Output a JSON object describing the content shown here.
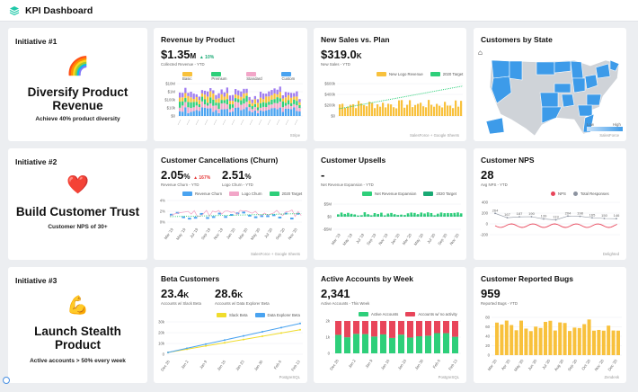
{
  "app": {
    "title": "KPI Dashboard"
  },
  "colors": {
    "teal": "#1fc8a9",
    "blue": "#4aa3f0",
    "yellow": "#f8c13c",
    "green": "#2ecf7a",
    "red": "#e8455a",
    "pink": "#f2a6c8",
    "gray": "#8c93a0"
  },
  "initiatives": [
    {
      "label": "Initiative #1",
      "icon": "rainbow-icon",
      "emoji": "🌈",
      "name": "Diversify Product Revenue",
      "subtitle": "Achieve 40% product diversity"
    },
    {
      "label": "Initiative #2",
      "icon": "heart-icon",
      "emoji": "❤️",
      "name": "Build Customer Trust",
      "subtitle": "Customer NPS of 30+"
    },
    {
      "label": "Initiative #3",
      "icon": "flexed-bicep-icon",
      "emoji": "💪",
      "name": "Launch Stealth Product",
      "subtitle": "Active accounts > 50% every week"
    }
  ],
  "revenue": {
    "title": "Revenue by Product",
    "value_main": "$1.35",
    "value_unit": "M",
    "delta": "▲ 10%",
    "sub": "Collected Revenue - YTD",
    "legend": [
      "Basic",
      "Premium",
      "Standard",
      "Custom"
    ],
    "footer": "Stripe",
    "yticks": [
      "$10M",
      "$1M",
      "$100k",
      "$10k",
      "$0"
    ]
  },
  "newsales": {
    "title": "New Sales vs. Plan",
    "value_main": "$319.0",
    "value_unit": "K",
    "sub": "New Sales - YTD",
    "legend": [
      "New Logo Revenue",
      "2020 Target"
    ],
    "footer": "SalesForce + Google Sheets",
    "yticks": [
      "$600k",
      "$400k",
      "$200k",
      "$0"
    ]
  },
  "states": {
    "title": "Customers by State",
    "legend_low": "Low",
    "legend_high": "High",
    "footer": "SalesForce"
  },
  "churn": {
    "title": "Customer Cancellations (Churn)",
    "v1": "2.05",
    "v1_unit": "%",
    "v1_delta": "▲ 167%",
    "v1_sub": "Revenue Churn - YTD",
    "v2": "2.51",
    "v2_unit": "%",
    "v2_sub": "Logo Churn - YTD",
    "legend": [
      "Revenue Churn",
      "Logo Churn",
      "2020 Target"
    ],
    "footer": "SalesForce + Google Sheets",
    "yticks": [
      "4%",
      "2%",
      "0%"
    ],
    "xticks": [
      "Mar '19",
      "May '19",
      "Jul '19",
      "Sep '19",
      "Nov '19",
      "Jan '20",
      "Mar '20",
      "May '20",
      "Jul '20",
      "Sep '20",
      "Nov '20"
    ]
  },
  "upsells": {
    "title": "Customer Upsells",
    "value": "-",
    "sub": "Net Revenue Expansion - YTD",
    "legend": [
      "Net Revenue Expansion",
      "2020 Target"
    ],
    "yticks": [
      "$5M",
      "$0",
      "-$5M"
    ],
    "xticks": [
      "Mar '19",
      "May '19",
      "Jul '19",
      "Sep '19",
      "Nov '19",
      "Jan '20",
      "Mar '20",
      "May '20",
      "Jul '20",
      "Sep '20",
      "Nov '20"
    ]
  },
  "nps": {
    "title": "Customer NPS",
    "value": "28",
    "sub": "Avg NPS - YTD",
    "legend": [
      "NPS",
      "Total Responses"
    ],
    "footer": "Delighted",
    "yticks": [
      "400",
      "200",
      "0",
      "-200"
    ],
    "labels": [
      "264",
      "167",
      "187",
      "190",
      "139",
      "119",
      "204",
      "198",
      "165",
      "150",
      "146"
    ]
  },
  "beta": {
    "title": "Beta Customers",
    "v1": "23.4",
    "v1_unit": "K",
    "v1_sub": "Accounts w/ Slack Beta",
    "v2": "28.6",
    "v2_unit": "K",
    "v2_sub": "Accounts w/ Data Explorer Beta",
    "legend": [
      "Slack Beta",
      "Data Explorer Beta"
    ],
    "footer": "PostgreSQL",
    "yticks": [
      "30k",
      "20k",
      "10k",
      "0"
    ],
    "xticks": [
      "Dec 26",
      "Jan 2",
      "Jan 9",
      "Jan 16",
      "Jan 23",
      "Jan 30",
      "Feb 6",
      "Feb 13"
    ]
  },
  "active": {
    "title": "Active Accounts by Week",
    "value": "2,341",
    "sub": "Active Accounts - This Week",
    "legend": [
      "Active Accounts",
      "Accounts w/ no activity"
    ],
    "footer": "PostgreSQL",
    "yticks": [
      "2k",
      "1k",
      "0"
    ],
    "xticks": [
      "Dec 26",
      "Jan 2",
      "Jan 9",
      "Jan 16",
      "Jan 23",
      "Jan 30",
      "Feb 6",
      "Feb 13"
    ]
  },
  "bugs": {
    "title": "Customer Reported Bugs",
    "value": "959",
    "sub": "Reported Bugs - YTD",
    "footer": "Zendesk",
    "yticks": [
      "80",
      "60",
      "40",
      "20",
      "0"
    ],
    "xticks": [
      "Mar '20",
      "Apr '20",
      "May '20",
      "Jun '20",
      "Jul '20",
      "Aug '20",
      "Sep '20",
      "Oct '20",
      "Nov '20",
      "Dec '20"
    ]
  }
}
